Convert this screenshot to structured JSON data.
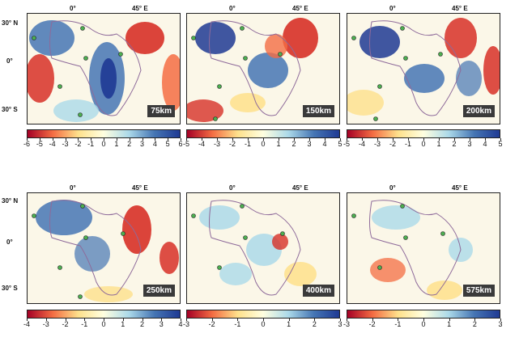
{
  "lon_labels": [
    "0°",
    "45° E"
  ],
  "lat_labels": [
    "30° N",
    "0°",
    "30° S"
  ],
  "colors": {
    "neg_strong": "#a50026",
    "neg": "#f46d43",
    "neg_weak": "#fee08b",
    "neutral": "#ffffe0",
    "pos_weak": "#abd9e9",
    "pos": "#4575b4",
    "pos_strong": "#1f3a93",
    "coast": "#8e6a9a",
    "station": "#4caf50"
  },
  "panels": [
    {
      "depth": "75km",
      "ticks": [
        "-6",
        "-5",
        "-4",
        "-3",
        "-2",
        "-1",
        "0",
        "1",
        "2",
        "3",
        "4",
        "5",
        "6"
      ]
    },
    {
      "depth": "150km",
      "ticks": [
        "-5",
        "-4",
        "-3",
        "-2",
        "-1",
        "0",
        "1",
        "2",
        "3",
        "4",
        "5"
      ]
    },
    {
      "depth": "200km",
      "ticks": [
        "-5",
        "-4",
        "-3",
        "-2",
        "-1",
        "0",
        "1",
        "2",
        "3",
        "4",
        "5"
      ]
    },
    {
      "depth": "250km",
      "ticks": [
        "-4",
        "-3",
        "-2",
        "-1",
        "0",
        "1",
        "2",
        "3",
        "4"
      ]
    },
    {
      "depth": "400km",
      "ticks": [
        "-3",
        "-2",
        "-1",
        "0",
        "1",
        "2",
        "3"
      ]
    },
    {
      "depth": "575km",
      "ticks": [
        "-3",
        "-2",
        "-1",
        "0",
        "1",
        "2",
        "3"
      ]
    }
  ]
}
